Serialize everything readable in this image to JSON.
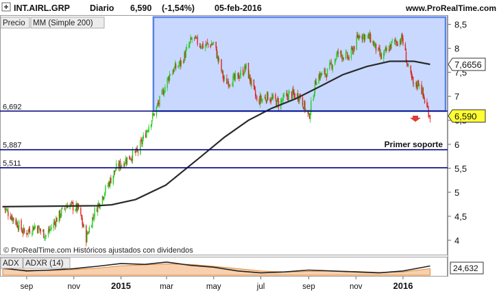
{
  "header": {
    "symbol": "INT.AIRL.GRP",
    "period": "Diario",
    "last_price": "6,590",
    "change": "(-1,54%)",
    "date": "05-feb-2016",
    "site": "www.ProRealTime.com"
  },
  "tabs": [
    {
      "label": "Precio"
    },
    {
      "label": "MM (Simple 200)"
    }
  ],
  "footer_note": "© ProRealTime.com Históricos ajustados con dividendos",
  "colors": {
    "up": "#22cc22",
    "down": "#dd2222",
    "box_fill": "#c9d8ff",
    "box_border": "#5a82e6",
    "level_line": "#00007a",
    "ma_line": "#2a2a2a",
    "badge_fill": "#ffff33"
  },
  "price_badges": [
    {
      "label": "7,6656",
      "value": 7.6656,
      "kind": "ma"
    },
    {
      "label": "6,590",
      "value": 6.59,
      "kind": "price"
    }
  ],
  "levels": [
    {
      "label": "6,692",
      "value": 6.692
    },
    {
      "label": "5,887",
      "value": 5.887
    },
    {
      "label": "5,511",
      "value": 5.511
    }
  ],
  "annotation": {
    "label": "Primer soporte"
  },
  "adx_panel": {
    "tabs": [
      {
        "label": "ADX"
      },
      {
        "label": "ADXR (14)"
      }
    ],
    "value_label": "24,632"
  },
  "chart_data": {
    "type": "candlestick",
    "ylim": [
      3.7,
      8.65
    ],
    "yticks": [
      "8,5",
      "8",
      "7,5",
      "7",
      "6,5",
      "6",
      "5,5",
      "5",
      "4,5",
      "4"
    ],
    "ytick_values": [
      8.5,
      8,
      7.5,
      7,
      6.5,
      6,
      5.5,
      5,
      4.5,
      4
    ],
    "x_range": [
      "2014-08-01",
      "2016-02-25"
    ],
    "xticks": [
      {
        "label": "sep",
        "date": "2014-09-01",
        "bold": false
      },
      {
        "label": "nov",
        "date": "2014-11-01",
        "bold": false
      },
      {
        "label": "2015",
        "date": "2015-01-01",
        "bold": true
      },
      {
        "label": "mar",
        "date": "2015-03-01",
        "bold": false
      },
      {
        "label": "may",
        "date": "2015-05-01",
        "bold": false
      },
      {
        "label": "jul",
        "date": "2015-07-01",
        "bold": false
      },
      {
        "label": "sep",
        "date": "2015-09-01",
        "bold": false
      },
      {
        "label": "nov",
        "date": "2015-11-01",
        "bold": false
      },
      {
        "label": "2016",
        "date": "2016-01-01",
        "bold": true
      }
    ],
    "price_path": [
      [
        "2014-08-01",
        4.7
      ],
      [
        "2014-08-15",
        4.45
      ],
      [
        "2014-08-29",
        4.15
      ],
      [
        "2014-09-12",
        4.3
      ],
      [
        "2014-09-26",
        4.1
      ],
      [
        "2014-10-10",
        4.45
      ],
      [
        "2014-10-24",
        4.75
      ],
      [
        "2014-11-07",
        4.65
      ],
      [
        "2014-11-17",
        4.05
      ],
      [
        "2014-11-28",
        4.6
      ],
      [
        "2014-12-12",
        5.05
      ],
      [
        "2014-12-26",
        5.5
      ],
      [
        "2015-01-09",
        5.7
      ],
      [
        "2015-01-23",
        5.85
      ],
      [
        "2015-02-06",
        6.4
      ],
      [
        "2015-02-20",
        6.9
      ],
      [
        "2015-03-06",
        7.5
      ],
      [
        "2015-03-20",
        7.7
      ],
      [
        "2015-04-03",
        8.2
      ],
      [
        "2015-04-17",
        8.05
      ],
      [
        "2015-05-01",
        8.1
      ],
      [
        "2015-05-15",
        7.3
      ],
      [
        "2015-05-29",
        7.35
      ],
      [
        "2015-06-12",
        7.6
      ],
      [
        "2015-06-26",
        6.9
      ],
      [
        "2015-07-10",
        7.0
      ],
      [
        "2015-07-24",
        6.85
      ],
      [
        "2015-08-07",
        7.05
      ],
      [
        "2015-08-21",
        7.0
      ],
      [
        "2015-09-01",
        6.55
      ],
      [
        "2015-09-11",
        7.4
      ],
      [
        "2015-09-25",
        7.5
      ],
      [
        "2015-10-09",
        7.9
      ],
      [
        "2015-10-23",
        7.8
      ],
      [
        "2015-11-06",
        8.3
      ],
      [
        "2015-11-20",
        8.2
      ],
      [
        "2015-12-04",
        7.8
      ],
      [
        "2015-12-18",
        8.1
      ],
      [
        "2015-12-31",
        8.2
      ],
      [
        "2016-01-08",
        7.55
      ],
      [
        "2016-01-15",
        7.2
      ],
      [
        "2016-01-22",
        7.3
      ],
      [
        "2016-01-29",
        6.9
      ],
      [
        "2016-02-05",
        6.59
      ]
    ],
    "ma200_path": [
      [
        "2014-08-01",
        4.7
      ],
      [
        "2014-12-01",
        4.72
      ],
      [
        "2014-12-20",
        4.74
      ],
      [
        "2015-01-20",
        4.85
      ],
      [
        "2015-02-28",
        5.15
      ],
      [
        "2015-04-15",
        5.75
      ],
      [
        "2015-05-15",
        6.15
      ],
      [
        "2015-06-15",
        6.5
      ],
      [
        "2015-07-15",
        6.75
      ],
      [
        "2015-08-15",
        6.95
      ],
      [
        "2015-09-15",
        7.2
      ],
      [
        "2015-10-15",
        7.45
      ],
      [
        "2015-11-15",
        7.62
      ],
      [
        "2015-12-15",
        7.73
      ],
      [
        "2016-01-15",
        7.73
      ],
      [
        "2016-02-05",
        7.6656
      ]
    ],
    "box": {
      "x_from": "2015-02-12",
      "x_to": "2016-02-25",
      "y_from": 6.692,
      "y_to": 8.65
    },
    "adx": {
      "ylim": [
        5,
        40
      ],
      "adx_path": [
        [
          "2014-08-01",
          20
        ],
        [
          "2014-09-01",
          14
        ],
        [
          "2014-10-01",
          16
        ],
        [
          "2014-11-01",
          19
        ],
        [
          "2014-12-01",
          24
        ],
        [
          "2015-01-01",
          30
        ],
        [
          "2015-02-01",
          28
        ],
        [
          "2015-03-01",
          33
        ],
        [
          "2015-04-01",
          26
        ],
        [
          "2015-05-01",
          22
        ],
        [
          "2015-06-01",
          14
        ],
        [
          "2015-07-01",
          10
        ],
        [
          "2015-08-01",
          12
        ],
        [
          "2015-09-01",
          16
        ],
        [
          "2015-10-01",
          14
        ],
        [
          "2015-11-01",
          12
        ],
        [
          "2015-12-01",
          10
        ],
        [
          "2016-01-01",
          14
        ],
        [
          "2016-02-05",
          24.632
        ]
      ],
      "adxr_path": [
        [
          "2014-08-01",
          18
        ],
        [
          "2014-09-01",
          16
        ],
        [
          "2014-10-01",
          15
        ],
        [
          "2014-11-01",
          17
        ],
        [
          "2014-12-01",
          20
        ],
        [
          "2015-01-01",
          25
        ],
        [
          "2015-02-01",
          27
        ],
        [
          "2015-03-01",
          29
        ],
        [
          "2015-04-01",
          28
        ],
        [
          "2015-05-01",
          24
        ],
        [
          "2015-06-01",
          19
        ],
        [
          "2015-07-01",
          14
        ],
        [
          "2015-08-01",
          12
        ],
        [
          "2015-09-01",
          13
        ],
        [
          "2015-10-01",
          14
        ],
        [
          "2015-11-01",
          13
        ],
        [
          "2015-12-01",
          11
        ],
        [
          "2016-01-01",
          12
        ],
        [
          "2016-02-05",
          19
        ]
      ]
    }
  }
}
